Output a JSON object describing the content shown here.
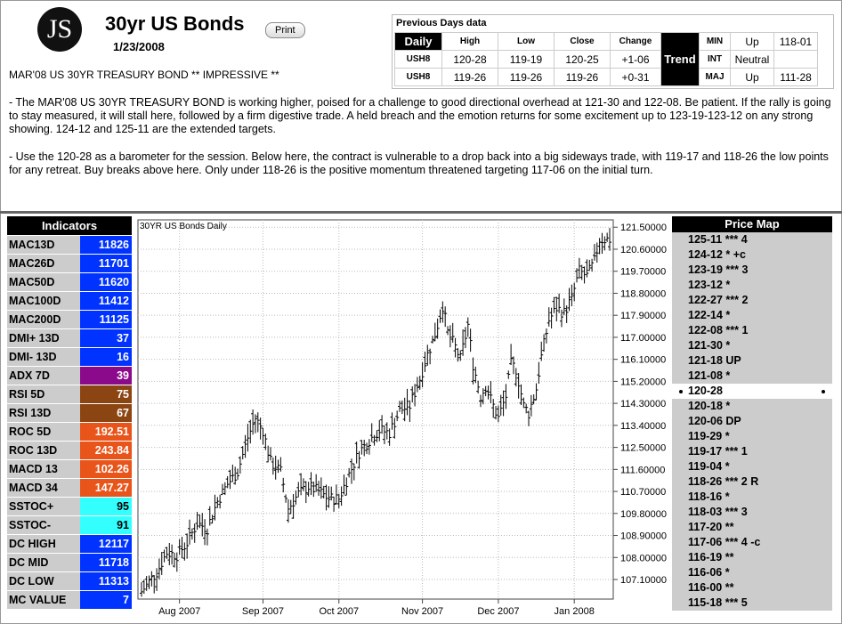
{
  "header": {
    "logo_text": "JS",
    "title": "30yr US Bonds",
    "print_label": "Print",
    "date": "1/23/2008",
    "headline": "MAR'08 US 30YR TREASURY BOND ** IMPRESSIVE **",
    "para1": "- The MAR'08 US 30YR TREASURY BOND is working higher, poised for a challenge to good directional overhead at 121-30 and 122-08. Be patient. If the rally is going to stay measured, it will stall here, followed by a firm digestive trade. A held breach and the emotion returns for some excitement up to 123-19-123-12 on any strong showing. 124-12 and 125-11 are the extended targets.",
    "para2": "- Use the 120-28 as a barometer for the session. Below here, the contract is vulnerable to a drop back into a big sideways trade, with 119-17 and 118-26 the low points for any retreat. Buy breaks above here. Only under 118-26 is the positive momentum threatened targeting 117-06 on the initial turn."
  },
  "previous_days": {
    "title": "Previous Days data",
    "daily_label": "Daily",
    "columns": [
      "High",
      "Low",
      "Close",
      "Change"
    ],
    "rows": [
      {
        "label": "USH8",
        "values": [
          "120-28",
          "119-19",
          "120-25",
          "+1-06"
        ]
      },
      {
        "label": "USH8",
        "values": [
          "119-26",
          "119-26",
          "119-26",
          "+0-31"
        ]
      }
    ],
    "trend_label": "Trend",
    "trend": [
      {
        "label": "MIN",
        "value": "Up",
        "level": "118-01"
      },
      {
        "label": "INT",
        "value": "Neutral",
        "level": ""
      },
      {
        "label": "MAJ",
        "value": "Up",
        "level": "111-28"
      }
    ]
  },
  "indicators": {
    "title": "Indicators",
    "items": [
      {
        "name": "MAC13D",
        "value": "11826",
        "color": "#0033ff",
        "text": "#ffffff"
      },
      {
        "name": "MAC26D",
        "value": "11701",
        "color": "#0033ff",
        "text": "#ffffff"
      },
      {
        "name": "MAC50D",
        "value": "11620",
        "color": "#0033ff",
        "text": "#ffffff"
      },
      {
        "name": "MAC100D",
        "value": "11412",
        "color": "#0033ff",
        "text": "#ffffff"
      },
      {
        "name": "MAC200D",
        "value": "11125",
        "color": "#0033ff",
        "text": "#ffffff"
      },
      {
        "name": "DMI+ 13D",
        "value": "37",
        "color": "#0033ff",
        "text": "#ffffff"
      },
      {
        "name": "DMI- 13D",
        "value": "16",
        "color": "#0033ff",
        "text": "#ffffff"
      },
      {
        "name": "ADX 7D",
        "value": "39",
        "color": "#8b0a8b",
        "text": "#ffffff"
      },
      {
        "name": "RSI 5D",
        "value": "75",
        "color": "#8b4513",
        "text": "#ffffff"
      },
      {
        "name": "RSI 13D",
        "value": "67",
        "color": "#8b4513",
        "text": "#ffffff"
      },
      {
        "name": "ROC 5D",
        "value": "192.51",
        "color": "#e8541a",
        "text": "#ffffff"
      },
      {
        "name": "ROC 13D",
        "value": "243.84",
        "color": "#e8541a",
        "text": "#ffffff"
      },
      {
        "name": "MACD 13",
        "value": "102.26",
        "color": "#e8541a",
        "text": "#ffffff"
      },
      {
        "name": "MACD 34",
        "value": "147.27",
        "color": "#e8541a",
        "text": "#ffffff"
      },
      {
        "name": "SSTOC+",
        "value": "95",
        "color": "#33ffff",
        "text": "#000000"
      },
      {
        "name": "SSTOC-",
        "value": "91",
        "color": "#33ffff",
        "text": "#000000"
      },
      {
        "name": "DC HIGH",
        "value": "12117",
        "color": "#0033ff",
        "text": "#ffffff"
      },
      {
        "name": "DC MID",
        "value": "11718",
        "color": "#0033ff",
        "text": "#ffffff"
      },
      {
        "name": "DC LOW",
        "value": "11313",
        "color": "#0033ff",
        "text": "#ffffff"
      },
      {
        "name": "MC VALUE",
        "value": "7",
        "color": "#0033ff",
        "text": "#ffffff"
      }
    ]
  },
  "price_map": {
    "title": "Price Map",
    "current": "120-28",
    "items": [
      "125-11 *** 4",
      "124-12 * +c",
      "123-19 *** 3",
      "123-12 *",
      "122-27 *** 2",
      "122-14 *",
      "122-08 *** 1",
      "121-30 *",
      "121-18 UP",
      "121-08 *",
      "120-28",
      "120-18 *",
      "120-06 DP",
      "119-29 *",
      "119-17 *** 1",
      "119-04 *",
      "118-26 *** 2 R",
      "118-16 *",
      "118-03 *** 3",
      "117-20 **",
      "117-06 *** 4 -c",
      "116-19 **",
      "116-06 *",
      "116-00 **",
      "115-18 *** 5"
    ]
  },
  "chart_data": {
    "type": "bar",
    "title": "30YR US Bonds Daily",
    "y_ticks": [
      "121.50000",
      "120.60000",
      "119.70000",
      "118.80000",
      "117.90000",
      "117.00000",
      "116.10000",
      "115.20000",
      "114.30000",
      "113.40000",
      "112.50000",
      "111.60000",
      "110.70000",
      "109.80000",
      "108.90000",
      "108.00000",
      "107.10000"
    ],
    "ylim": [
      106.3,
      121.8
    ],
    "x_ticks": [
      {
        "label": "Aug 2007",
        "day": 15
      },
      {
        "label": "Sep 2007",
        "day": 48
      },
      {
        "label": "Oct 2007",
        "day": 78
      },
      {
        "label": "Nov 2007",
        "day": 111
      },
      {
        "label": "Dec 2007",
        "day": 141
      },
      {
        "label": "Jan 2008",
        "day": 171
      }
    ],
    "x_count": 186,
    "anchors": [
      [
        0,
        106.6
      ],
      [
        6,
        107.4
      ],
      [
        10,
        108.2
      ],
      [
        14,
        108.1
      ],
      [
        18,
        108.6
      ],
      [
        22,
        109.4
      ],
      [
        26,
        109.2
      ],
      [
        30,
        110.3
      ],
      [
        34,
        111.0
      ],
      [
        38,
        111.5
      ],
      [
        42,
        112.9
      ],
      [
        45,
        113.7
      ],
      [
        48,
        113.2
      ],
      [
        51,
        111.9
      ],
      [
        55,
        111.5
      ],
      [
        58,
        110.0
      ],
      [
        62,
        110.6
      ],
      [
        66,
        110.9
      ],
      [
        70,
        110.7
      ],
      [
        74,
        110.4
      ],
      [
        78,
        110.4
      ],
      [
        82,
        111.4
      ],
      [
        86,
        112.3
      ],
      [
        90,
        112.8
      ],
      [
        94,
        113.2
      ],
      [
        98,
        113.1
      ],
      [
        102,
        114.0
      ],
      [
        106,
        114.2
      ],
      [
        110,
        115.3
      ],
      [
        113,
        116.3
      ],
      [
        116,
        117.1
      ],
      [
        119,
        118.3
      ],
      [
        121,
        117.2
      ],
      [
        124,
        116.6
      ],
      [
        126,
        116.1
      ],
      [
        129,
        117.5
      ],
      [
        131,
        115.9
      ],
      [
        134,
        114.6
      ],
      [
        136,
        115.0
      ],
      [
        139,
        114.2
      ],
      [
        141,
        113.7
      ],
      [
        144,
        114.6
      ],
      [
        146,
        115.9
      ],
      [
        148,
        115.7
      ],
      [
        151,
        114.2
      ],
      [
        153,
        113.9
      ],
      [
        156,
        114.9
      ],
      [
        158,
        116.2
      ],
      [
        161,
        117.7
      ],
      [
        164,
        118.2
      ],
      [
        167,
        118.0
      ],
      [
        170,
        118.6
      ],
      [
        173,
        119.7
      ],
      [
        176,
        119.5
      ],
      [
        179,
        120.1
      ],
      [
        181,
        121.0
      ]
    ]
  }
}
